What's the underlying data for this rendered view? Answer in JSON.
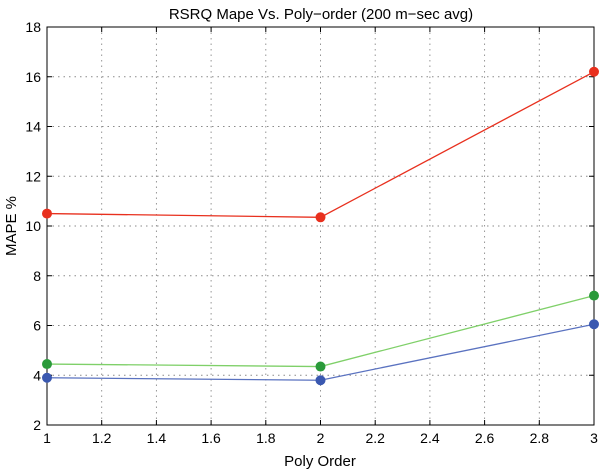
{
  "chart_data": {
    "type": "line",
    "title": "RSRQ Mape Vs. Poly−order (200 m−sec avg)",
    "xlabel": "Poly Order",
    "ylabel": "MAPE %",
    "xlim": [
      1,
      3
    ],
    "ylim": [
      2,
      18
    ],
    "grid": true,
    "x_ticks": [
      "1",
      "1.2",
      "1.4",
      "1.6",
      "1.8",
      "2",
      "2.2",
      "2.4",
      "2.6",
      "2.8",
      "3"
    ],
    "y_ticks": [
      "2",
      "4",
      "6",
      "8",
      "10",
      "12",
      "14",
      "16",
      "18"
    ],
    "x": [
      1,
      2,
      3
    ],
    "series": [
      {
        "color": "#e8301e",
        "values": [
          10.5,
          10.35,
          16.2
        ]
      },
      {
        "color": "#2a9a3a",
        "line_color": "#7fd069",
        "values": [
          4.45,
          4.35,
          7.2
        ]
      },
      {
        "color": "#3a58b0",
        "line_color": "#5a72c0",
        "values": [
          3.9,
          3.8,
          6.05
        ]
      }
    ]
  }
}
